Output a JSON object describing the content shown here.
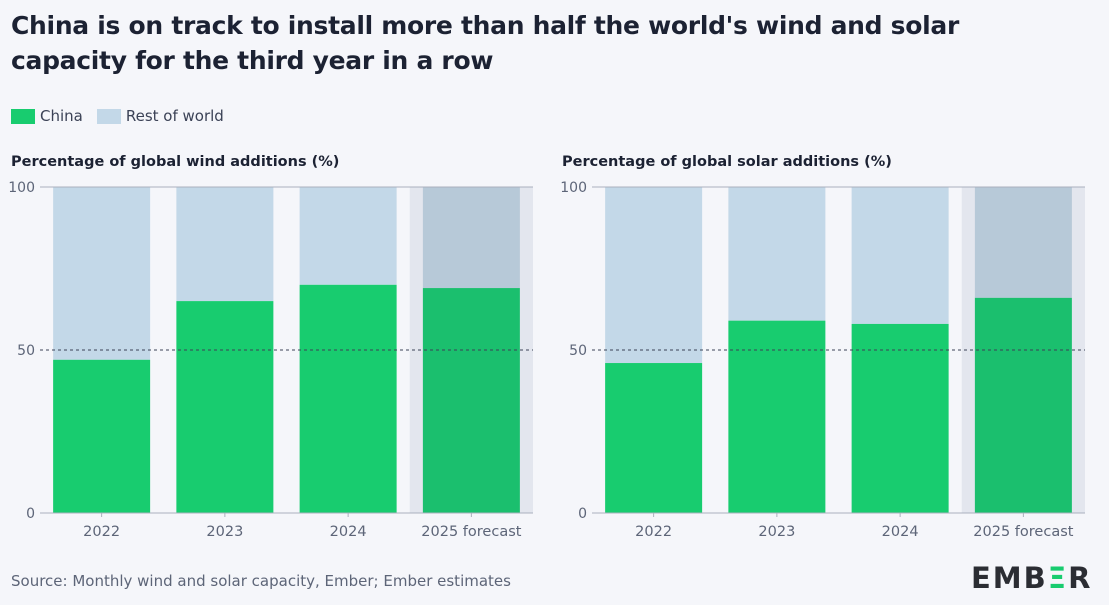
{
  "title": "China is on track to install more than half the world's wind and solar capacity for the third year in a row",
  "legend": [
    {
      "label": "China",
      "color": "#18cc6f"
    },
    {
      "label": "Rest of world",
      "color": "#c3d8e8"
    }
  ],
  "source": "Source: Monthly wind and solar capacity, Ember; Ember estimates",
  "logo": "EMBER",
  "chart_data": [
    {
      "type": "bar",
      "stacked": true,
      "title": "Percentage of global wind additions (%)",
      "categories": [
        "2022",
        "2023",
        "2024",
        "2025 forecast"
      ],
      "series": [
        {
          "name": "China",
          "values": [
            47,
            65,
            70,
            69
          ]
        },
        {
          "name": "Rest of world",
          "values": [
            53,
            35,
            30,
            31
          ]
        }
      ],
      "ylim": [
        0,
        100
      ],
      "yticks": [
        "0",
        "50",
        "100"
      ],
      "reference_line": 50,
      "forecast_category": "2025 forecast"
    },
    {
      "type": "bar",
      "stacked": true,
      "title": "Percentage of global solar additions (%)",
      "categories": [
        "2022",
        "2023",
        "2024",
        "2025 forecast"
      ],
      "series": [
        {
          "name": "China",
          "values": [
            46,
            59,
            58,
            66
          ]
        },
        {
          "name": "Rest of world",
          "values": [
            54,
            41,
            42,
            34
          ]
        }
      ],
      "ylim": [
        0,
        100
      ],
      "yticks": [
        "0",
        "50",
        "100"
      ],
      "reference_line": 50,
      "forecast_category": "2025 forecast"
    }
  ]
}
